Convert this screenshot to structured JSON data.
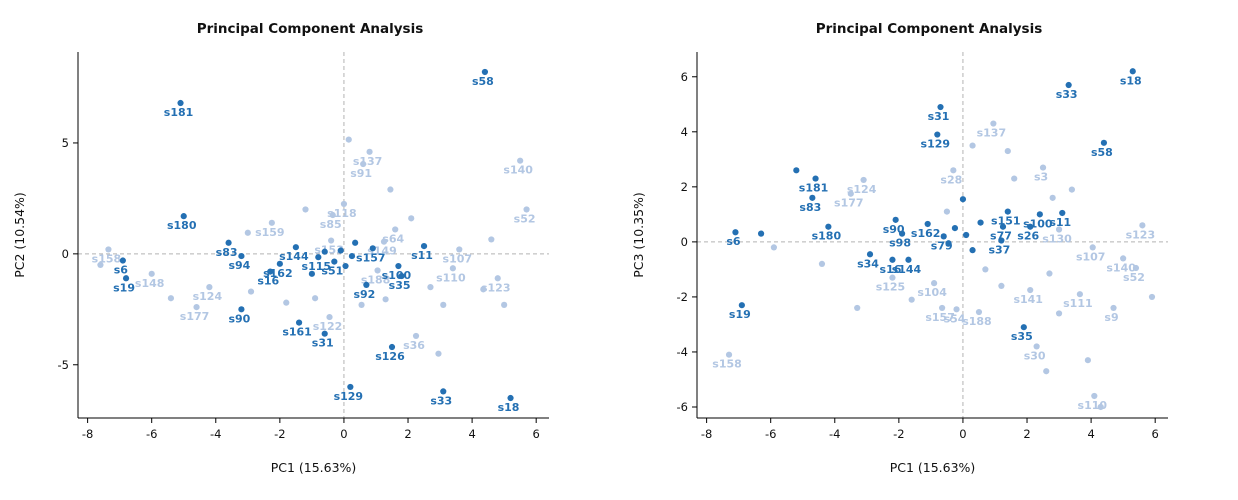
{
  "figure": {
    "background": "#ffffff",
    "accent_dark": "#2470b3",
    "accent_light": "#b3c7e3",
    "refline_color": "#b3b3b3",
    "axis_color": "#000000"
  },
  "chart_data": [
    {
      "type": "scatter",
      "title": "Principal Component Analysis",
      "xlabel": "PC1 (15.63%)",
      "ylabel": "PC2 (10.54%)",
      "xlim": [
        -8.3,
        6.4
      ],
      "ylim": [
        -7.4,
        9.1
      ],
      "xticks": [
        -8,
        -6,
        -4,
        -2,
        0,
        2,
        4,
        6
      ],
      "yticks": [
        -5,
        0,
        5
      ],
      "grid": "off",
      "reference_lines": {
        "x": 0,
        "y": 0,
        "style": "dashed"
      },
      "legend": "none",
      "series": [
        {
          "name": "group-dark",
          "color": "#2470b3",
          "points": [
            {
              "x": 4.4,
              "y": 8.2,
              "label": "s58"
            },
            {
              "x": -5.1,
              "y": 6.8,
              "label": "s181"
            },
            {
              "x": -5.0,
              "y": 1.7,
              "label": "s180"
            },
            {
              "x": -3.6,
              "y": 0.5,
              "label": "s83"
            },
            {
              "x": -3.2,
              "y": -0.1,
              "label": "s94"
            },
            {
              "x": -6.9,
              "y": -0.3,
              "label": "s6"
            },
            {
              "x": -6.8,
              "y": -1.1,
              "label": "s19"
            },
            {
              "x": -3.2,
              "y": -2.5,
              "label": "s90"
            },
            {
              "x": -1.4,
              "y": -3.1,
              "label": "s161"
            },
            {
              "x": -0.6,
              "y": -3.6,
              "label": "s31"
            },
            {
              "x": 1.5,
              "y": -4.2,
              "label": "s126"
            },
            {
              "x": 0.2,
              "y": -6.0,
              "label": "s129"
            },
            {
              "x": 3.1,
              "y": -6.2,
              "label": "s33"
            },
            {
              "x": 5.2,
              "y": -6.5,
              "label": "s18"
            },
            {
              "x": 0.7,
              "y": -1.4,
              "label": "s92"
            },
            {
              "x": 1.8,
              "y": -1.0,
              "label": "s35"
            },
            {
              "x": 1.7,
              "y": -0.55,
              "label": "s100"
            },
            {
              "x": 2.5,
              "y": 0.35,
              "label": "s11"
            },
            {
              "x": -1.5,
              "y": 0.3,
              "label": "s144"
            },
            {
              "x": -2.0,
              "y": -0.45,
              "label": "s162"
            },
            {
              "x": -2.3,
              "y": -0.8,
              "label": "s16"
            },
            {
              "x": 0.9,
              "y": 0.25,
              "label": "s157"
            },
            {
              "x": -0.8,
              "y": -0.15,
              "label": "s115"
            },
            {
              "x": -0.3,
              "y": -0.35,
              "label": "s51"
            },
            {
              "x": -0.1,
              "y": 0.15
            },
            {
              "x": 0.25,
              "y": -0.1
            },
            {
              "x": -0.6,
              "y": 0.1
            },
            {
              "x": 0.05,
              "y": -0.55
            },
            {
              "x": 0.35,
              "y": 0.5
            },
            {
              "x": -1.0,
              "y": -0.9
            }
          ]
        },
        {
          "name": "group-light",
          "color": "#b3c7e3",
          "points": [
            {
              "x": 0.8,
              "y": 4.6,
              "label": "s137"
            },
            {
              "x": 0.6,
              "y": 4.05,
              "label": "s91"
            },
            {
              "x": 5.5,
              "y": 4.2,
              "label": "s140"
            },
            {
              "x": 5.7,
              "y": 2.0,
              "label": "s52"
            },
            {
              "x": 0.0,
              "y": 2.25,
              "label": "s118"
            },
            {
              "x": -0.35,
              "y": 1.75,
              "label": "s85"
            },
            {
              "x": -2.25,
              "y": 1.4,
              "label": "s159"
            },
            {
              "x": -0.4,
              "y": 0.6,
              "label": "s153"
            },
            {
              "x": -7.35,
              "y": 0.2,
              "label": "s158"
            },
            {
              "x": -6.0,
              "y": -0.9,
              "label": "s148"
            },
            {
              "x": 1.6,
              "y": 1.1,
              "label": "s64"
            },
            {
              "x": 1.25,
              "y": 0.55,
              "label": "s149"
            },
            {
              "x": 3.6,
              "y": 0.2,
              "label": "s107"
            },
            {
              "x": 3.4,
              "y": -0.65,
              "label": "s110"
            },
            {
              "x": 4.8,
              "y": -1.1,
              "label": "s123"
            },
            {
              "x": 1.05,
              "y": -0.75,
              "label": "s188"
            },
            {
              "x": -4.2,
              "y": -1.5,
              "label": "s124"
            },
            {
              "x": -4.6,
              "y": -2.4,
              "label": "s177"
            },
            {
              "x": -0.45,
              "y": -2.85,
              "label": "s122"
            },
            {
              "x": 2.25,
              "y": -3.7,
              "label": "s36"
            },
            {
              "x": -7.6,
              "y": -0.5
            },
            {
              "x": -5.4,
              "y": -2.0
            },
            {
              "x": -2.9,
              "y": -1.7
            },
            {
              "x": -1.8,
              "y": -2.2
            },
            {
              "x": -0.9,
              "y": -2.0
            },
            {
              "x": 0.15,
              "y": 5.15
            },
            {
              "x": 1.45,
              "y": 2.9
            },
            {
              "x": 2.1,
              "y": 1.6
            },
            {
              "x": 2.7,
              "y": -1.5
            },
            {
              "x": 3.1,
              "y": -2.3
            },
            {
              "x": 2.95,
              "y": -4.5
            },
            {
              "x": 4.35,
              "y": -1.6
            },
            {
              "x": 5.0,
              "y": -2.3
            },
            {
              "x": 4.6,
              "y": 0.65
            },
            {
              "x": -1.2,
              "y": 2.0
            },
            {
              "x": 0.55,
              "y": -2.3
            },
            {
              "x": -3.0,
              "y": 0.95
            },
            {
              "x": 1.3,
              "y": -2.05
            }
          ]
        }
      ]
    },
    {
      "type": "scatter",
      "title": "Principal Component Analysis",
      "xlabel": "PC1 (15.63%)",
      "ylabel": "PC3 (10.35%)",
      "xlim": [
        -8.3,
        6.4
      ],
      "ylim": [
        -6.4,
        6.9
      ],
      "xticks": [
        -8,
        -6,
        -4,
        -2,
        0,
        2,
        4,
        6
      ],
      "yticks": [
        -6,
        -4,
        -2,
        0,
        2,
        4,
        6
      ],
      "grid": "off",
      "reference_lines": {
        "x": 0,
        "y": 0,
        "style": "dashed"
      },
      "legend": "none",
      "series": [
        {
          "name": "group-dark",
          "color": "#2470b3",
          "points": [
            {
              "x": 5.3,
              "y": 6.2,
              "label": "s18"
            },
            {
              "x": 3.3,
              "y": 5.7,
              "label": "s33"
            },
            {
              "x": -0.7,
              "y": 4.9,
              "label": "s31"
            },
            {
              "x": -0.8,
              "y": 3.9,
              "label": "s129"
            },
            {
              "x": 4.4,
              "y": 3.6,
              "label": "s58"
            },
            {
              "x": -4.6,
              "y": 2.3,
              "label": "s181"
            },
            {
              "x": -4.7,
              "y": 1.6,
              "label": "s83"
            },
            {
              "x": -4.2,
              "y": 0.55,
              "label": "s180"
            },
            {
              "x": -2.1,
              "y": 0.8,
              "label": "s90"
            },
            {
              "x": -1.9,
              "y": 0.3,
              "label": "s98"
            },
            {
              "x": -1.1,
              "y": 0.65,
              "label": "s162"
            },
            {
              "x": -7.1,
              "y": 0.35,
              "label": "s6"
            },
            {
              "x": -6.9,
              "y": -2.3,
              "label": "s19"
            },
            {
              "x": -2.9,
              "y": -0.45,
              "label": "s34"
            },
            {
              "x": -2.2,
              "y": -0.65,
              "label": "s16"
            },
            {
              "x": -1.7,
              "y": -0.65,
              "label": "s144"
            },
            {
              "x": 1.4,
              "y": 1.1,
              "label": "s151"
            },
            {
              "x": 2.4,
              "y": 1.0,
              "label": "s100"
            },
            {
              "x": 3.1,
              "y": 1.05,
              "label": "s11"
            },
            {
              "x": 1.25,
              "y": 0.55,
              "label": "s77"
            },
            {
              "x": 2.1,
              "y": 0.55,
              "label": "s26"
            },
            {
              "x": 1.2,
              "y": 0.05,
              "label": "s37"
            },
            {
              "x": -0.6,
              "y": 0.2,
              "label": "s79"
            },
            {
              "x": 1.9,
              "y": -3.1,
              "label": "s35"
            },
            {
              "x": -5.2,
              "y": 2.6
            },
            {
              "x": -6.3,
              "y": 0.3
            },
            {
              "x": -0.25,
              "y": 0.5
            },
            {
              "x": 0.1,
              "y": 0.25
            },
            {
              "x": -0.45,
              "y": -0.05
            },
            {
              "x": 0.3,
              "y": -0.3
            },
            {
              "x": 0.55,
              "y": 0.7
            },
            {
              "x": 0.0,
              "y": 1.55
            }
          ]
        },
        {
          "name": "group-light",
          "color": "#b3c7e3",
          "points": [
            {
              "x": 0.95,
              "y": 4.3,
              "label": "s137"
            },
            {
              "x": -3.1,
              "y": 2.25,
              "label": "s124"
            },
            {
              "x": -3.5,
              "y": 1.75,
              "label": "s177"
            },
            {
              "x": 2.5,
              "y": 2.7,
              "label": "s3"
            },
            {
              "x": -0.3,
              "y": 2.6,
              "label": "s28"
            },
            {
              "x": 3.0,
              "y": 0.45,
              "label": "s130"
            },
            {
              "x": 5.6,
              "y": 0.6,
              "label": "s123"
            },
            {
              "x": 4.05,
              "y": -0.2,
              "label": "s107"
            },
            {
              "x": 5.0,
              "y": -0.6,
              "label": "s140"
            },
            {
              "x": 5.4,
              "y": -0.95,
              "label": "s52"
            },
            {
              "x": -2.2,
              "y": -1.3,
              "label": "s125"
            },
            {
              "x": -0.9,
              "y": -1.5,
              "label": "s104"
            },
            {
              "x": 2.1,
              "y": -1.75,
              "label": "s141"
            },
            {
              "x": 3.65,
              "y": -1.9,
              "label": "s111"
            },
            {
              "x": 4.7,
              "y": -2.4,
              "label": "s9"
            },
            {
              "x": -0.65,
              "y": -2.4,
              "label": "s157"
            },
            {
              "x": -0.2,
              "y": -2.45,
              "label": "s54"
            },
            {
              "x": 0.5,
              "y": -2.55,
              "label": "s188"
            },
            {
              "x": 2.3,
              "y": -3.8,
              "label": "s30"
            },
            {
              "x": -7.3,
              "y": -4.1,
              "label": "s158"
            },
            {
              "x": 4.1,
              "y": -5.6,
              "label": "s110"
            },
            {
              "x": -5.9,
              "y": -0.2
            },
            {
              "x": -4.4,
              "y": -0.8
            },
            {
              "x": -3.3,
              "y": -2.4
            },
            {
              "x": -1.6,
              "y": -2.1
            },
            {
              "x": 0.3,
              "y": 3.5
            },
            {
              "x": 1.4,
              "y": 3.3
            },
            {
              "x": 2.8,
              "y": 1.6
            },
            {
              "x": 3.4,
              "y": 1.9
            },
            {
              "x": 0.7,
              "y": -1.0
            },
            {
              "x": 1.2,
              "y": -1.6
            },
            {
              "x": 2.7,
              "y": -1.15
            },
            {
              "x": 3.0,
              "y": -2.6
            },
            {
              "x": 3.9,
              "y": -4.3
            },
            {
              "x": 2.6,
              "y": -4.7
            },
            {
              "x": 5.9,
              "y": -2.0
            },
            {
              "x": -0.5,
              "y": 1.1
            },
            {
              "x": 4.3,
              "y": -6.0
            },
            {
              "x": 1.6,
              "y": 2.3
            }
          ]
        }
      ]
    }
  ]
}
